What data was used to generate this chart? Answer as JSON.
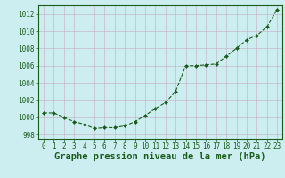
{
  "x": [
    0,
    1,
    2,
    3,
    4,
    5,
    6,
    7,
    8,
    9,
    10,
    11,
    12,
    13,
    14,
    15,
    16,
    17,
    18,
    19,
    20,
    21,
    22,
    23
  ],
  "y": [
    1000.5,
    1000.5,
    1000.0,
    999.5,
    999.2,
    998.7,
    998.8,
    998.8,
    999.0,
    999.5,
    1000.2,
    1001.0,
    1001.7,
    1003.0,
    1006.0,
    1006.0,
    1006.1,
    1006.2,
    1007.1,
    1008.0,
    1009.0,
    1009.5,
    1010.5,
    1012.5
  ],
  "line_color": "#1a5c1a",
  "marker_color": "#1a5c1a",
  "bg_color": "#cceef0",
  "grid_color": "#c8b8cc",
  "axis_color": "#1a5c1a",
  "tick_label_color": "#1a5c1a",
  "xlabel": "Graphe pression niveau de la mer (hPa)",
  "xlabel_color": "#1a5c1a",
  "ylim": [
    997.5,
    1013.0
  ],
  "xlim": [
    -0.5,
    23.5
  ],
  "yticks": [
    998,
    1000,
    1002,
    1004,
    1006,
    1008,
    1010,
    1012
  ],
  "xticks": [
    0,
    1,
    2,
    3,
    4,
    5,
    6,
    7,
    8,
    9,
    10,
    11,
    12,
    13,
    14,
    15,
    16,
    17,
    18,
    19,
    20,
    21,
    22,
    23
  ],
  "tick_fontsize": 5.5,
  "xlabel_fontsize": 7.5
}
